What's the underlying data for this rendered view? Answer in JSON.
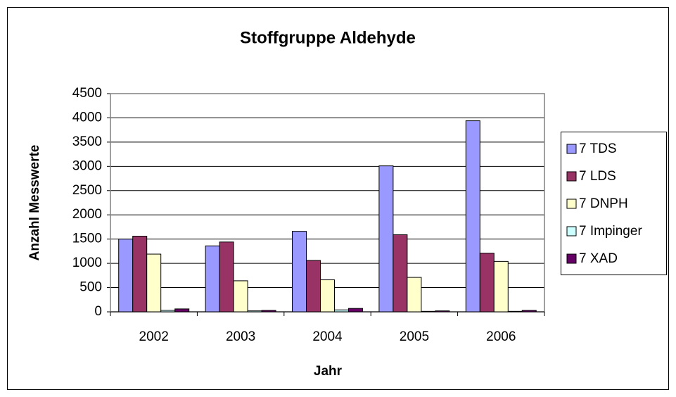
{
  "chart_data": {
    "type": "bar",
    "title": "Stoffgruppe Aldehyde",
    "x_label": "Jahr",
    "y_label": "Anzahl Messwerte",
    "categories": [
      "2002",
      "2003",
      "2004",
      "2005",
      "2006"
    ],
    "series": [
      {
        "name": "7 TDS",
        "color": "#9999ff",
        "values": [
          1500,
          1360,
          1660,
          3010,
          3940
        ]
      },
      {
        "name": "7 LDS",
        "color": "#993366",
        "values": [
          1560,
          1440,
          1060,
          1590,
          1210
        ]
      },
      {
        "name": "7 DNPH",
        "color": "#ffffcc",
        "values": [
          1190,
          640,
          660,
          710,
          1040
        ]
      },
      {
        "name": "7 Impinger",
        "color": "#ccffff",
        "values": [
          30,
          20,
          40,
          10,
          10
        ]
      },
      {
        "name": "7 XAD",
        "color": "#660066",
        "values": [
          60,
          30,
          70,
          20,
          30
        ]
      }
    ],
    "ylim": [
      0,
      4500
    ],
    "yticks": [
      0,
      500,
      1000,
      1500,
      2000,
      2500,
      3000,
      3500,
      4000,
      4500
    ],
    "grid": true,
    "legend": "right"
  }
}
